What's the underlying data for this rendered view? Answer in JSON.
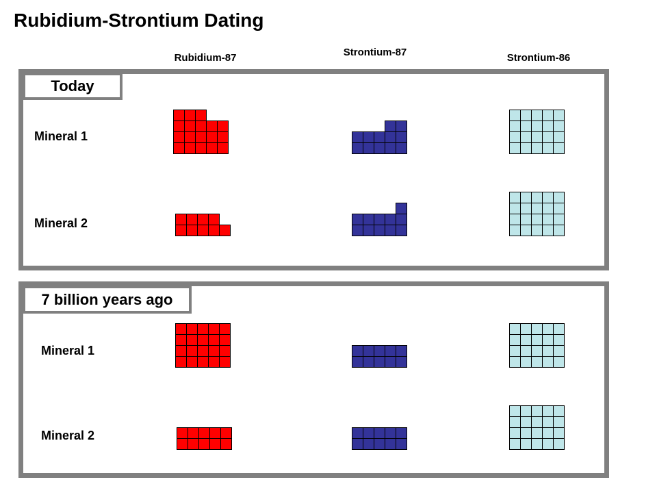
{
  "title": "Rubidium-Strontium Dating",
  "columns": {
    "rb87": "Rubidium-87",
    "sr87": "Strontium-87",
    "sr86": "Strontium-86"
  },
  "colors": {
    "rb87": "#ff0000",
    "sr87": "#333399",
    "sr86": "#bfe6e9",
    "panel_border": "#808080"
  },
  "panels": {
    "today": {
      "label": "Today",
      "mineral1": {
        "label": "Mineral 1",
        "rb87_rows": [
          3,
          5,
          5,
          5
        ],
        "sr87_rows": [
          2,
          5,
          5
        ],
        "sr86_rows": [
          5,
          5,
          5,
          5
        ]
      },
      "mineral2": {
        "label": "Mineral 2",
        "rb87_rows": [
          4,
          5
        ],
        "sr87_rows": [
          1,
          5,
          5
        ],
        "sr86_rows": [
          5,
          5,
          5,
          5
        ]
      }
    },
    "past": {
      "label": "7 billion years ago",
      "mineral1": {
        "label": "Mineral 1",
        "rb87_rows": [
          5,
          5,
          5,
          5
        ],
        "sr87_rows": [
          5,
          5
        ],
        "sr86_rows": [
          5,
          5,
          5,
          5
        ]
      },
      "mineral2": {
        "label": "Mineral 2",
        "rb87_rows": [
          5,
          5
        ],
        "sr87_rows": [
          5,
          5
        ],
        "sr86_rows": [
          5,
          5,
          5,
          5
        ]
      }
    }
  }
}
